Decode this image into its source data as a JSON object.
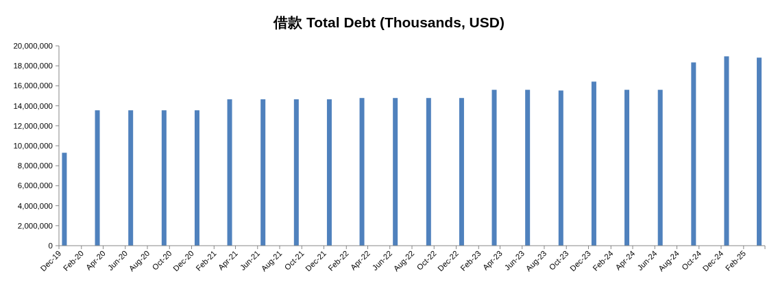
{
  "chart_data": {
    "type": "bar",
    "title": "借款 Total Debt (Thousands, USD)",
    "x": [
      "2019-12-16",
      "2020-03-16",
      "2020-06-16",
      "2020-09-16",
      "2020-12-16",
      "2021-03-16",
      "2021-06-16",
      "2021-09-16",
      "2021-12-16",
      "2022-03-16",
      "2022-06-16",
      "2022-09-16",
      "2022-12-16",
      "2023-03-16",
      "2023-06-16",
      "2023-09-16",
      "2023-12-16",
      "2024-03-16",
      "2024-06-16",
      "2024-09-16",
      "2024-12-16",
      "2025-03-16"
    ],
    "values": [
      9300000,
      13550000,
      13550000,
      13550000,
      13550000,
      14650000,
      14650000,
      14650000,
      14650000,
      14780000,
      14780000,
      14780000,
      14780000,
      15600000,
      15600000,
      15530000,
      16420000,
      15600000,
      15600000,
      18340000,
      18950000,
      18820000
    ],
    "color": "#4f81bd",
    "xlim": [
      "2019-12",
      "2025-04"
    ],
    "xticks": [
      {
        "value": "2019-12",
        "label": "Dec-19"
      },
      {
        "value": "2020-02",
        "label": "Feb-20"
      },
      {
        "value": "2020-04",
        "label": "Apr-20"
      },
      {
        "value": "2020-06",
        "label": "Jun-20"
      },
      {
        "value": "2020-08",
        "label": "Aug-20"
      },
      {
        "value": "2020-10",
        "label": "Oct-20"
      },
      {
        "value": "2020-12",
        "label": "Dec-20"
      },
      {
        "value": "2021-02",
        "label": "Feb-21"
      },
      {
        "value": "2021-04",
        "label": "Apr-21"
      },
      {
        "value": "2021-06",
        "label": "Jun-21"
      },
      {
        "value": "2021-08",
        "label": "Aug-21"
      },
      {
        "value": "2021-10",
        "label": "Oct-21"
      },
      {
        "value": "2021-12",
        "label": "Dec-21"
      },
      {
        "value": "2022-02",
        "label": "Feb-22"
      },
      {
        "value": "2022-04",
        "label": "Apr-22"
      },
      {
        "value": "2022-06",
        "label": "Jun-22"
      },
      {
        "value": "2022-08",
        "label": "Aug-22"
      },
      {
        "value": "2022-10",
        "label": "Oct-22"
      },
      {
        "value": "2022-12",
        "label": "Dec-22"
      },
      {
        "value": "2023-02",
        "label": "Feb-23"
      },
      {
        "value": "2023-04",
        "label": "Apr-23"
      },
      {
        "value": "2023-06",
        "label": "Jun-23"
      },
      {
        "value": "2023-08",
        "label": "Aug-23"
      },
      {
        "value": "2023-10",
        "label": "Oct-23"
      },
      {
        "value": "2023-12",
        "label": "Dec-23"
      },
      {
        "value": "2024-02",
        "label": "Feb-24"
      },
      {
        "value": "2024-04",
        "label": "Apr-24"
      },
      {
        "value": "2024-06",
        "label": "Jun-24"
      },
      {
        "value": "2024-08",
        "label": "Aug-24"
      },
      {
        "value": "2024-10",
        "label": "Oct-24"
      },
      {
        "value": "2024-12",
        "label": "Dec-24"
      },
      {
        "value": "2025-02",
        "label": "Feb-25"
      },
      {
        "value": "2025-04",
        "label": null
      }
    ],
    "ylim": [
      0,
      20000000
    ],
    "yticks": [
      {
        "value": 0,
        "label": "0"
      },
      {
        "value": 2000000,
        "label": "2,000,000"
      },
      {
        "value": 4000000,
        "label": "4,000,000"
      },
      {
        "value": 6000000,
        "label": "6,000,000"
      },
      {
        "value": 8000000,
        "label": "8,000,000"
      },
      {
        "value": 10000000,
        "label": "10,000,000"
      },
      {
        "value": 12000000,
        "label": "12,000,000"
      },
      {
        "value": 14000000,
        "label": "14,000,000"
      },
      {
        "value": 16000000,
        "label": "16,000,000"
      },
      {
        "value": 18000000,
        "label": "18,000,000"
      },
      {
        "value": 20000000,
        "label": "20,000,000"
      }
    ],
    "grid": false
  }
}
